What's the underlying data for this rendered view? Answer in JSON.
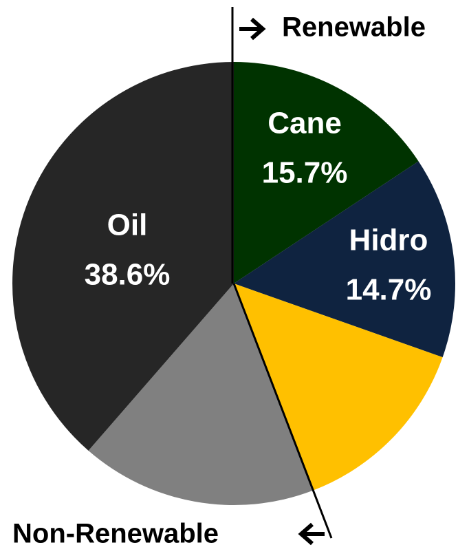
{
  "chart_data": {
    "type": "pie",
    "categories": [
      "Cane",
      "Hidro",
      null,
      null,
      "Oil"
    ],
    "values": [
      15.7,
      14.7,
      13.8,
      17.2,
      38.6
    ],
    "value_labels": [
      "15.7%",
      "14.7%",
      null,
      null,
      "38.6%"
    ],
    "colors": [
      "#003300",
      "#0f2340",
      "#ffc000",
      "#808080",
      "#262626"
    ],
    "annotations": [
      "Renewable",
      "Non-Renewable"
    ]
  }
}
